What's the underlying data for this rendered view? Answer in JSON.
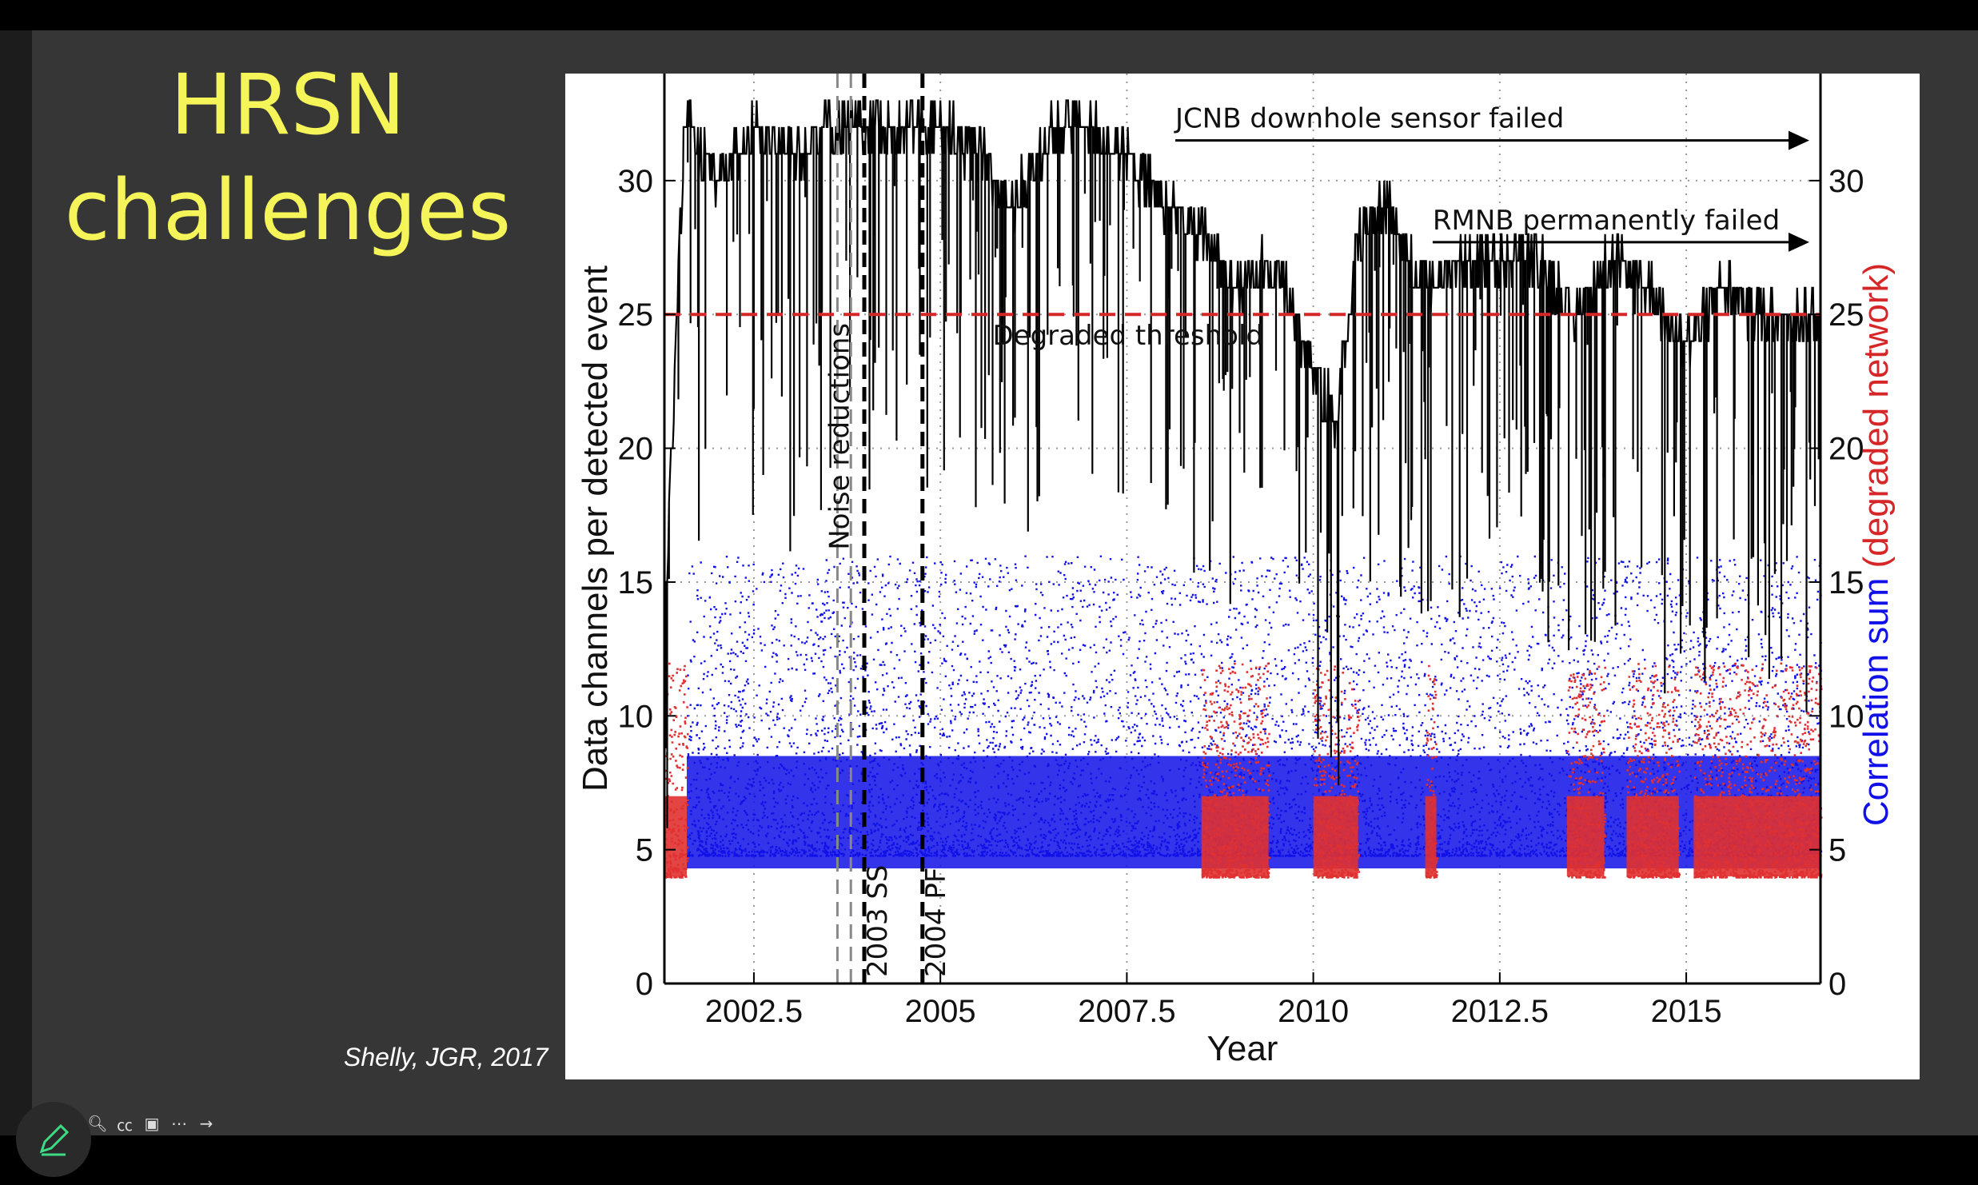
{
  "slide": {
    "title_line1": "HRSN",
    "title_line2": "challenges",
    "citation": "Shelly, JGR, 2017"
  },
  "colors": {
    "title": "#f5f55a",
    "channels_line": "#000000",
    "correlation_points": "#1010e8",
    "degraded_points": "#e03030",
    "threshold": "#d62728"
  },
  "toolbar": {
    "icons": [
      "zoom-icon",
      "captions-icon",
      "video-icon",
      "more-icon",
      "forward-icon"
    ],
    "pen_icon": "pen-icon"
  },
  "chart_data": {
    "type": "scatter",
    "xlabel": "Year",
    "ylabel_left": "Data channels per detected event",
    "ylabel_right_part1": "Correlation sum",
    "ylabel_right_part2": "(degraded network)",
    "xlim": [
      2001.3,
      2016.8
    ],
    "ylim": [
      0,
      34
    ],
    "x_ticks": [
      "2002.5",
      "2005",
      "2007.5",
      "2010",
      "2012.5",
      "2015"
    ],
    "y_ticks": [
      "0",
      "5",
      "10",
      "15",
      "20",
      "25",
      "30"
    ],
    "grid": true,
    "threshold": {
      "label": "Degraded threshold",
      "y": 25
    },
    "annotations": [
      {
        "text": "JCNB downhole sensor failed",
        "x_start": 2008.15,
        "x_end": 2016.65,
        "y": 31.5
      },
      {
        "text": "RMNB permanently failed",
        "x_start": 2011.6,
        "x_end": 2016.65,
        "y": 27.7
      }
    ],
    "events": [
      {
        "label": "Noise reductions",
        "x": 2003.62,
        "style": "gray-dashed"
      },
      {
        "label": "",
        "x": 2003.8,
        "style": "gray-dashed"
      },
      {
        "label": "2003 SS",
        "x": 2003.98,
        "style": "black-dashed"
      },
      {
        "label": "2004 PF",
        "x": 2004.76,
        "style": "black-dashed"
      }
    ],
    "series": [
      {
        "name": "Data channels per detected event",
        "style": "step",
        "x": [
          2001.3,
          2001.55,
          2001.6,
          2002.0,
          2002.3,
          2002.5,
          2003.0,
          2003.5,
          2004.0,
          2004.5,
          2005.0,
          2005.5,
          2006.0,
          2006.5,
          2007.0,
          2007.5,
          2008.0,
          2008.5,
          2009.0,
          2009.5,
          2010.0,
          2010.3,
          2010.6,
          2011.0,
          2011.5,
          2012.0,
          2012.5,
          2013.0,
          2013.5,
          2014.0,
          2014.5,
          2015.0,
          2015.5,
          2016.0,
          2016.8
        ],
        "y": [
          13,
          31,
          32,
          30,
          31,
          32,
          31,
          32,
          32,
          32,
          32,
          31,
          29,
          32,
          32,
          31,
          29,
          28,
          26,
          27,
          23,
          21,
          28,
          29,
          26,
          27,
          27,
          27,
          25,
          27,
          26,
          24,
          26,
          25,
          25
        ]
      },
      {
        "name": "Correlation sum",
        "style": "dense-scatter",
        "x_range": [
          2001.6,
          2016.8
        ],
        "y_range": [
          4,
          16
        ]
      },
      {
        "name": "Correlation sum (degraded network)",
        "style": "dense-scatter",
        "x_segments": [
          [
            2001.3,
            2001.6
          ],
          [
            2008.5,
            2009.4
          ],
          [
            2010.0,
            2010.6
          ],
          [
            2011.5,
            2011.65
          ],
          [
            2013.4,
            2013.9
          ],
          [
            2014.2,
            2014.9
          ],
          [
            2015.1,
            2016.8
          ]
        ],
        "y_range": [
          4,
          12
        ]
      }
    ]
  }
}
